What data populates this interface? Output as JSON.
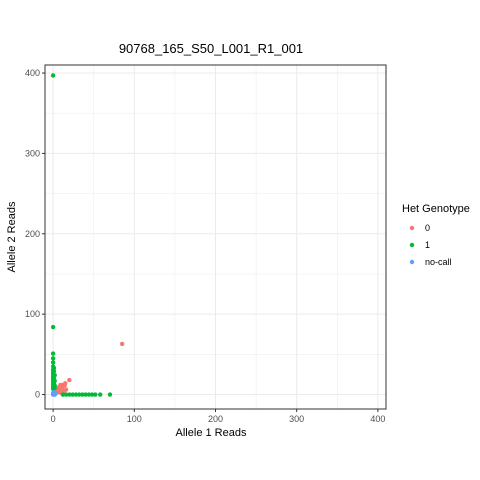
{
  "chart_data": {
    "type": "scatter",
    "title": "90768_165_S50_L001_R1_001",
    "xlabel": "Allele 1 Reads",
    "ylabel": "Allele 2 Reads",
    "xlim": [
      -10,
      410
    ],
    "ylim": [
      -18,
      410
    ],
    "x_ticks": [
      0,
      100,
      200,
      300,
      400
    ],
    "y_ticks": [
      0,
      100,
      200,
      300,
      400
    ],
    "grid": true,
    "legend": {
      "title": "Het Genotype",
      "position": "right"
    },
    "series": [
      {
        "name": "0",
        "color": "#F8766D",
        "points": [
          [
            85,
            63
          ],
          [
            20,
            18
          ],
          [
            15,
            14
          ],
          [
            12,
            12
          ],
          [
            10,
            10
          ],
          [
            9,
            8
          ],
          [
            8,
            6
          ],
          [
            7,
            9
          ],
          [
            6,
            5
          ],
          [
            5,
            4
          ],
          [
            4,
            3
          ],
          [
            3,
            2
          ],
          [
            2,
            1
          ],
          [
            14,
            11
          ],
          [
            11,
            7
          ],
          [
            9,
            12
          ],
          [
            7,
            3
          ],
          [
            16,
            6
          ],
          [
            13,
            4
          ],
          [
            10,
            2
          ]
        ]
      },
      {
        "name": "1",
        "color": "#00BA38",
        "points": [
          [
            0,
            397
          ],
          [
            0,
            84
          ],
          [
            0,
            51
          ],
          [
            0,
            45
          ],
          [
            0,
            40
          ],
          [
            0,
            35
          ],
          [
            0,
            31
          ],
          [
            0,
            28
          ],
          [
            0,
            25
          ],
          [
            0,
            22
          ],
          [
            0,
            19
          ],
          [
            0,
            16
          ],
          [
            0,
            13
          ],
          [
            0,
            10
          ],
          [
            0,
            7
          ],
          [
            1,
            33
          ],
          [
            1,
            29
          ],
          [
            2,
            24
          ],
          [
            1,
            20
          ],
          [
            2,
            17
          ],
          [
            1,
            14
          ],
          [
            2,
            11
          ],
          [
            2,
            8
          ],
          [
            12,
            0
          ],
          [
            16,
            0
          ],
          [
            20,
            0
          ],
          [
            24,
            0
          ],
          [
            28,
            0
          ],
          [
            32,
            0
          ],
          [
            36,
            0
          ],
          [
            40,
            0
          ],
          [
            44,
            0
          ],
          [
            48,
            0
          ],
          [
            52,
            0
          ],
          [
            58,
            0
          ],
          [
            70,
            0
          ]
        ]
      },
      {
        "name": "no-call",
        "color": "#619CFF",
        "points": [
          [
            0,
            0
          ],
          [
            1,
            1
          ],
          [
            1,
            0
          ],
          [
            0,
            1
          ],
          [
            2,
            2
          ],
          [
            2,
            0
          ],
          [
            0,
            2
          ],
          [
            3,
            1
          ],
          [
            1,
            3
          ],
          [
            2,
            1
          ]
        ]
      }
    ]
  }
}
